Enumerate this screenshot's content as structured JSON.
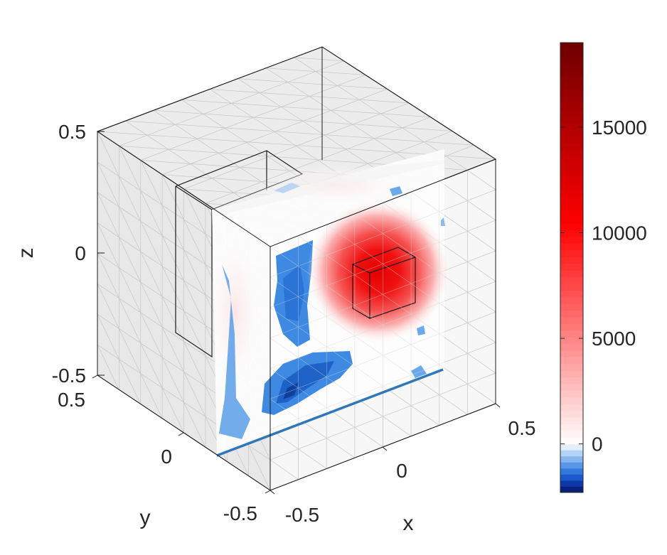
{
  "chart_data": {
    "type": "heatmap",
    "subtype": "3d-slice-contour",
    "axes": {
      "x": {
        "label": "x",
        "range": [
          -0.5,
          0.5
        ],
        "ticks": [
          "-0.5",
          "0",
          "0.5"
        ]
      },
      "y": {
        "label": "y",
        "range": [
          -0.5,
          0.5
        ],
        "ticks": [
          "-0.5",
          "0",
          "0.5"
        ]
      },
      "z": {
        "label": "z",
        "range": [
          -0.5,
          0.5
        ],
        "ticks": [
          "-0.5",
          "0",
          "0.5"
        ]
      }
    },
    "colorbar": {
      "range": [
        -2300,
        19000
      ],
      "ticks": [
        0,
        5000,
        10000,
        15000
      ],
      "tick_labels": [
        "0",
        "5000",
        "10000",
        "15000"
      ],
      "colormap": "blue-white-red diverging",
      "negative_color": "#1a66d6",
      "positive_color": "#ff0000",
      "max_color": "#7a0000"
    },
    "features": {
      "hotspot_peak": 13000,
      "hotspot_center": [
        0.05,
        -0.5,
        0.0
      ],
      "cold_minimum": -2000
    },
    "grid": true,
    "colorbar_location": "right"
  }
}
